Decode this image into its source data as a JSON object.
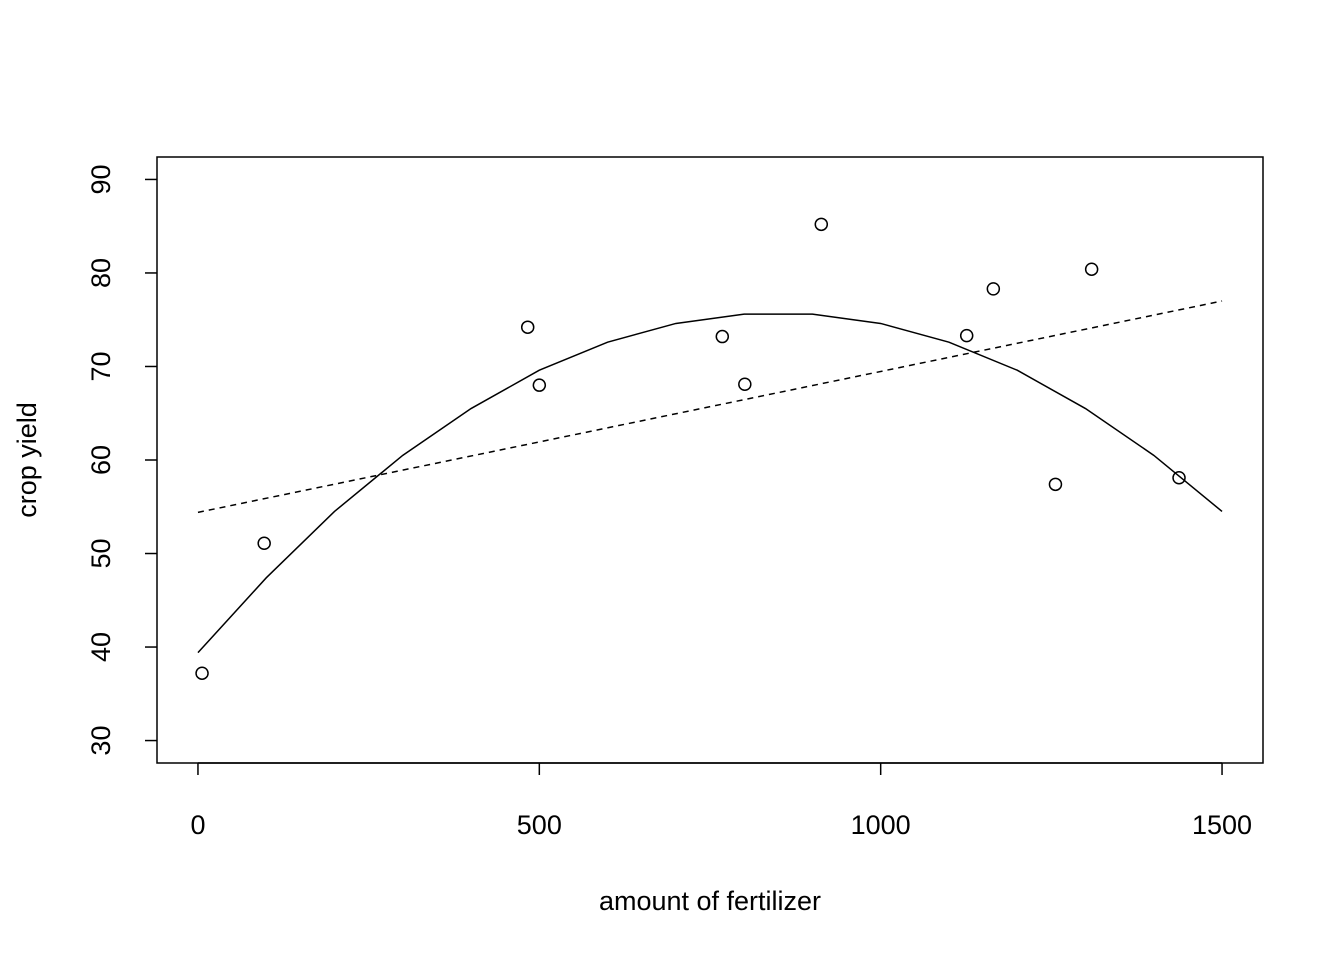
{
  "chart_data": {
    "type": "scatter",
    "xlabel": "amount of fertilizer",
    "ylabel": "crop yield",
    "xlim": [
      -60,
      1560
    ],
    "ylim": [
      27.6,
      92.4
    ],
    "xticks": [
      0,
      500,
      1000,
      1500
    ],
    "yticks": [
      30,
      40,
      50,
      60,
      70,
      80,
      90
    ],
    "color": "#000000",
    "points": {
      "x": [
        6,
        97,
        483,
        500,
        768,
        801,
        913,
        1126,
        1165,
        1256,
        1309,
        1437
      ],
      "y": [
        37.2,
        51.1,
        74.2,
        68.0,
        73.2,
        68.1,
        85.2,
        73.3,
        78.3,
        57.4,
        80.4,
        58.1
      ]
    },
    "fits": [
      {
        "style": "solid",
        "x": [
          0,
          100,
          200,
          300,
          400,
          500,
          600,
          700,
          800,
          900,
          1000,
          1100,
          1200,
          1300,
          1400,
          1500
        ],
        "values": [
          39.4,
          47.4,
          54.5,
          60.5,
          65.5,
          69.6,
          72.6,
          74.6,
          75.6,
          75.6,
          74.6,
          72.6,
          69.6,
          65.5,
          60.5,
          54.5
        ]
      },
      {
        "style": "dashed",
        "x": [
          0,
          1500
        ],
        "values": [
          54.4,
          77.0
        ]
      }
    ]
  }
}
